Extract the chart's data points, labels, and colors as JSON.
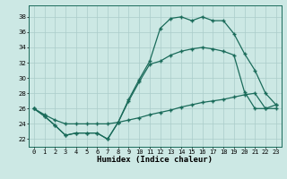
{
  "xlabel": "Humidex (Indice chaleur)",
  "background_color": "#cce8e4",
  "grid_color": "#aaccca",
  "line_color": "#1a6b5a",
  "xlim": [
    -0.5,
    23.5
  ],
  "ylim": [
    21.0,
    39.5
  ],
  "yticks": [
    22,
    24,
    26,
    28,
    30,
    32,
    34,
    36,
    38
  ],
  "series1_x": [
    0,
    1,
    2,
    3,
    4,
    5,
    6,
    7,
    8,
    9,
    10,
    11,
    12,
    13,
    14,
    15,
    16,
    17,
    18,
    19,
    20,
    21,
    22,
    23
  ],
  "series1_y": [
    26.0,
    25.0,
    23.8,
    22.5,
    22.8,
    22.8,
    22.8,
    22.0,
    24.2,
    27.2,
    29.8,
    32.2,
    36.5,
    37.8,
    38.0,
    37.5,
    38.0,
    37.5,
    37.5,
    35.8,
    33.2,
    31.0,
    28.0,
    26.5
  ],
  "series2_x": [
    0,
    1,
    2,
    3,
    4,
    5,
    6,
    7,
    8,
    9,
    10,
    11,
    12,
    13,
    14,
    15,
    16,
    17,
    18,
    19,
    20,
    21,
    22,
    23
  ],
  "series2_y": [
    26.0,
    25.0,
    23.8,
    22.5,
    22.8,
    22.8,
    22.8,
    22.0,
    24.2,
    27.0,
    29.5,
    31.8,
    32.2,
    33.0,
    33.5,
    33.8,
    34.0,
    33.8,
    33.5,
    33.0,
    28.2,
    26.0,
    26.0,
    26.0
  ],
  "series3_x": [
    0,
    1,
    2,
    3,
    4,
    5,
    6,
    7,
    8,
    9,
    10,
    11,
    12,
    13,
    14,
    15,
    16,
    17,
    18,
    19,
    20,
    21,
    22,
    23
  ],
  "series3_y": [
    26.0,
    25.2,
    24.5,
    24.0,
    24.0,
    24.0,
    24.0,
    24.0,
    24.2,
    24.5,
    24.8,
    25.2,
    25.5,
    25.8,
    26.2,
    26.5,
    26.8,
    27.0,
    27.2,
    27.5,
    27.8,
    28.0,
    26.0,
    26.5
  ],
  "fontsize": 6.5
}
